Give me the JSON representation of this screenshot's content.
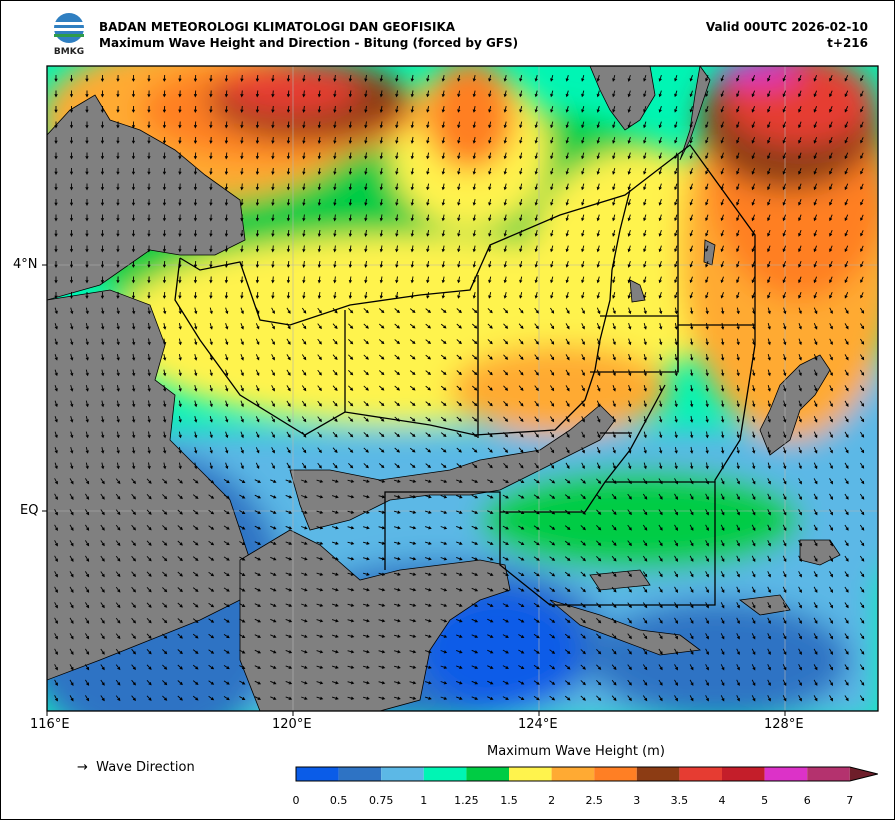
{
  "header": {
    "agency": "BADAN METEOROLOGI KLIMATOLOGI DAN GEOFISIKA",
    "subtitle": "Maximum Wave Height and Direction - Bitung (forced by GFS)",
    "valid": "Valid 00UTC 2026-02-10",
    "lead": "t+216",
    "logo_text": "BMKG"
  },
  "axes": {
    "x_labels": [
      "116°E",
      "120°E",
      "124°E",
      "128°E"
    ],
    "y_labels": [
      "4°N",
      "EQ"
    ]
  },
  "legend": {
    "arrow_symbol": "→",
    "direction_label": "Wave Direction"
  },
  "colorbar": {
    "title": "Maximum Wave Height (m)",
    "ticks": [
      "0",
      "0.5",
      "0.75",
      "1",
      "1.25",
      "1.5",
      "2",
      "2.5",
      "3",
      "3.5",
      "4",
      "5",
      "6",
      "7"
    ],
    "colors": [
      "#0a5ce8",
      "#2e73c4",
      "#5cb8e6",
      "#00f5b4",
      "#00cc44",
      "#fff34d",
      "#ffaa33",
      "#ff7f24",
      "#8c3c14",
      "#e63c32",
      "#c41e2a",
      "#dc32c8",
      "#b4326e",
      "#6e1e2a"
    ]
  }
}
